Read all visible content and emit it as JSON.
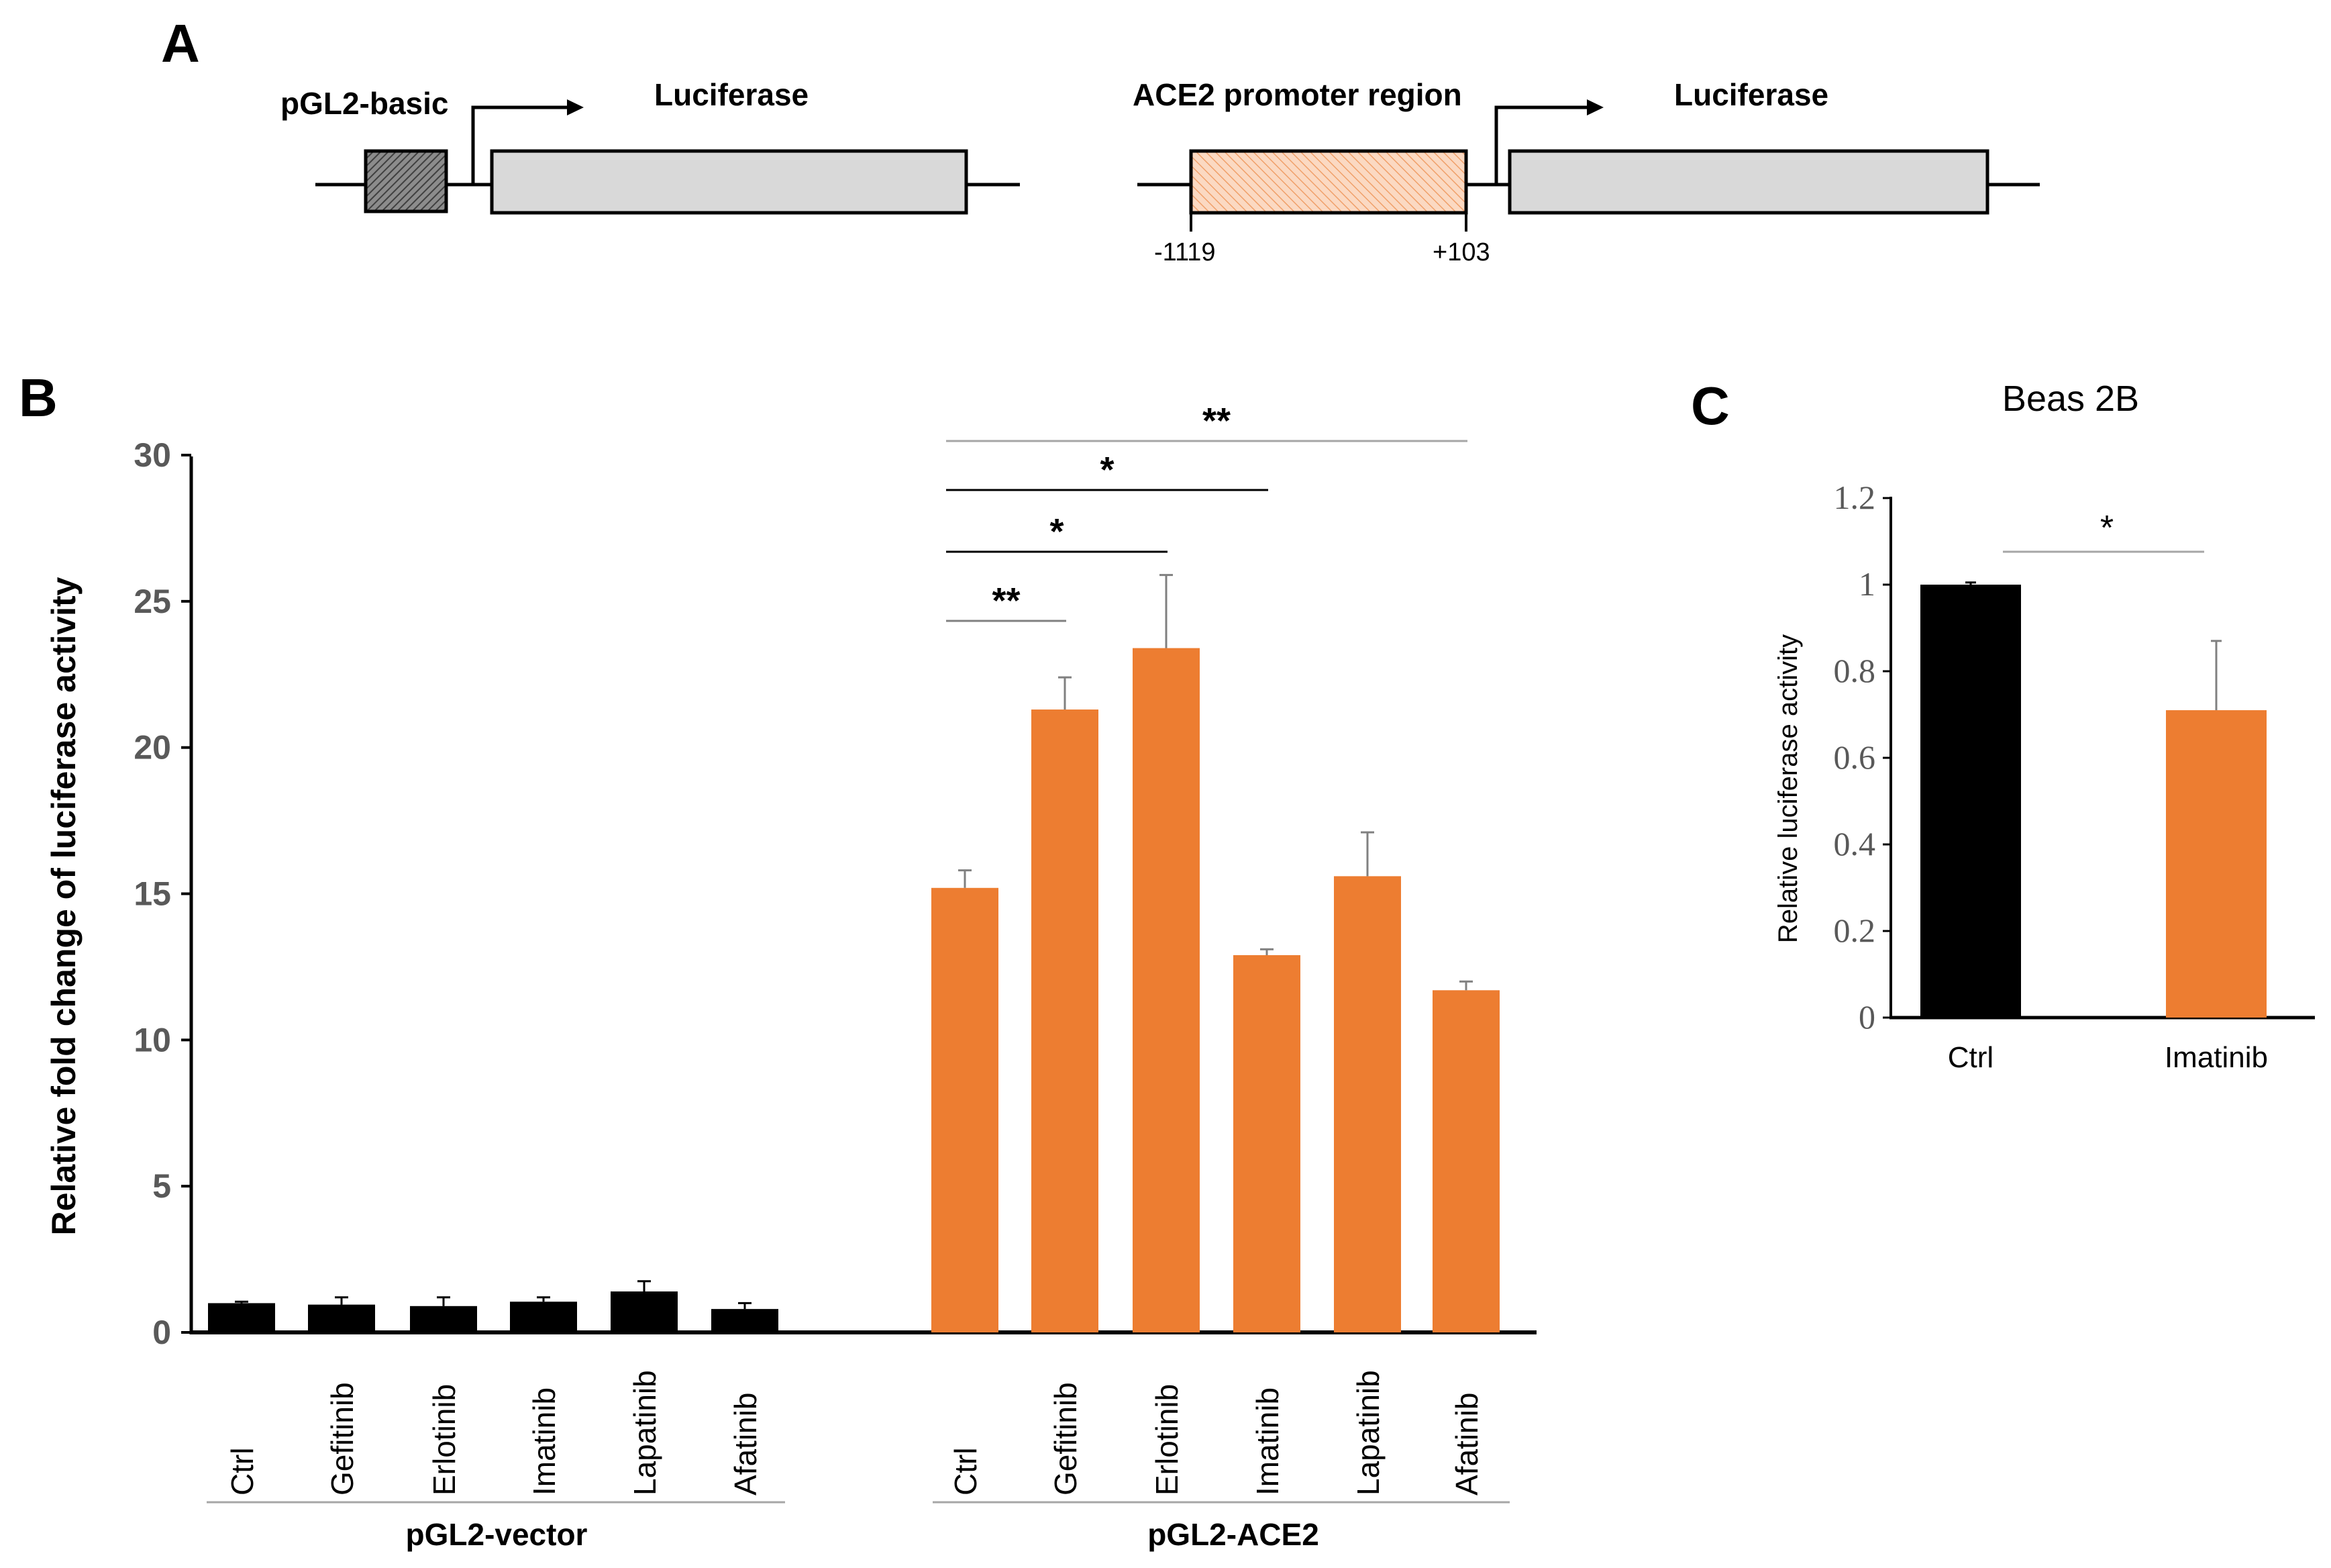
{
  "colors": {
    "black": "#000000",
    "orange": "#ED7D31",
    "grey_box": "#D9D9D9",
    "dark_hatch": "#595959",
    "light_line": "#A6A6A6",
    "tick_grey": "#595959",
    "promoter_fill": "#F8CBAD"
  },
  "panel_a": {
    "label": "A",
    "left_construct": {
      "vector_label": "pGL2-basic",
      "gene_label": "Luciferase"
    },
    "right_construct": {
      "promoter_label": "ACE2 promoter region",
      "gene_label": "Luciferase",
      "start_pos": "-1119",
      "end_pos": "+103"
    }
  },
  "chart_data": [
    {
      "id": "B",
      "panel_label": "B",
      "type": "bar",
      "ylabel": "Relative fold change of luciferase activity",
      "ylim": [
        0,
        30
      ],
      "yticks": [
        "0",
        "5",
        "10",
        "15",
        "20",
        "25",
        "30"
      ],
      "categories": [
        "Ctrl",
        "Gefitinib",
        "Erlotinib",
        "Imatinib",
        "Lapatinib",
        "Afatinib"
      ],
      "groups": [
        "pGL2-vector",
        "pGL2-ACE2"
      ],
      "series": [
        {
          "name": "pGL2-vector",
          "color": "#000000",
          "values": [
            1.0,
            0.95,
            0.9,
            1.05,
            1.4,
            0.8
          ],
          "errors": [
            0.05,
            0.25,
            0.3,
            0.15,
            0.35,
            0.2
          ]
        },
        {
          "name": "pGL2-ACE2",
          "color": "#ED7D31",
          "values": [
            15.2,
            21.3,
            23.4,
            12.9,
            15.6,
            11.7
          ],
          "errors": [
            0.6,
            1.1,
            2.5,
            0.2,
            1.5,
            0.3
          ]
        }
      ],
      "significance": [
        {
          "from": 0,
          "to": 1,
          "label": "**"
        },
        {
          "from": 0,
          "to": 2,
          "label": "*"
        },
        {
          "from": 0,
          "to": 3,
          "label": "*"
        },
        {
          "from": 0,
          "to": 5,
          "label": "**"
        }
      ]
    },
    {
      "id": "C",
      "panel_label": "C",
      "type": "bar",
      "title": "Beas 2B",
      "ylabel": "Relative luciferase activity",
      "ylim": [
        0,
        1.2
      ],
      "yticks": [
        "0",
        "0.2",
        "0.4",
        "0.6",
        "0.8",
        "1",
        "1.2"
      ],
      "categories": [
        "Ctrl",
        "Imatinib"
      ],
      "values": [
        1.0,
        0.71
      ],
      "errors": [
        0.005,
        0.16
      ],
      "colors": [
        "#000000",
        "#ED7D31"
      ],
      "significance": [
        {
          "from": 0,
          "to": 1,
          "label": "*"
        }
      ]
    }
  ]
}
